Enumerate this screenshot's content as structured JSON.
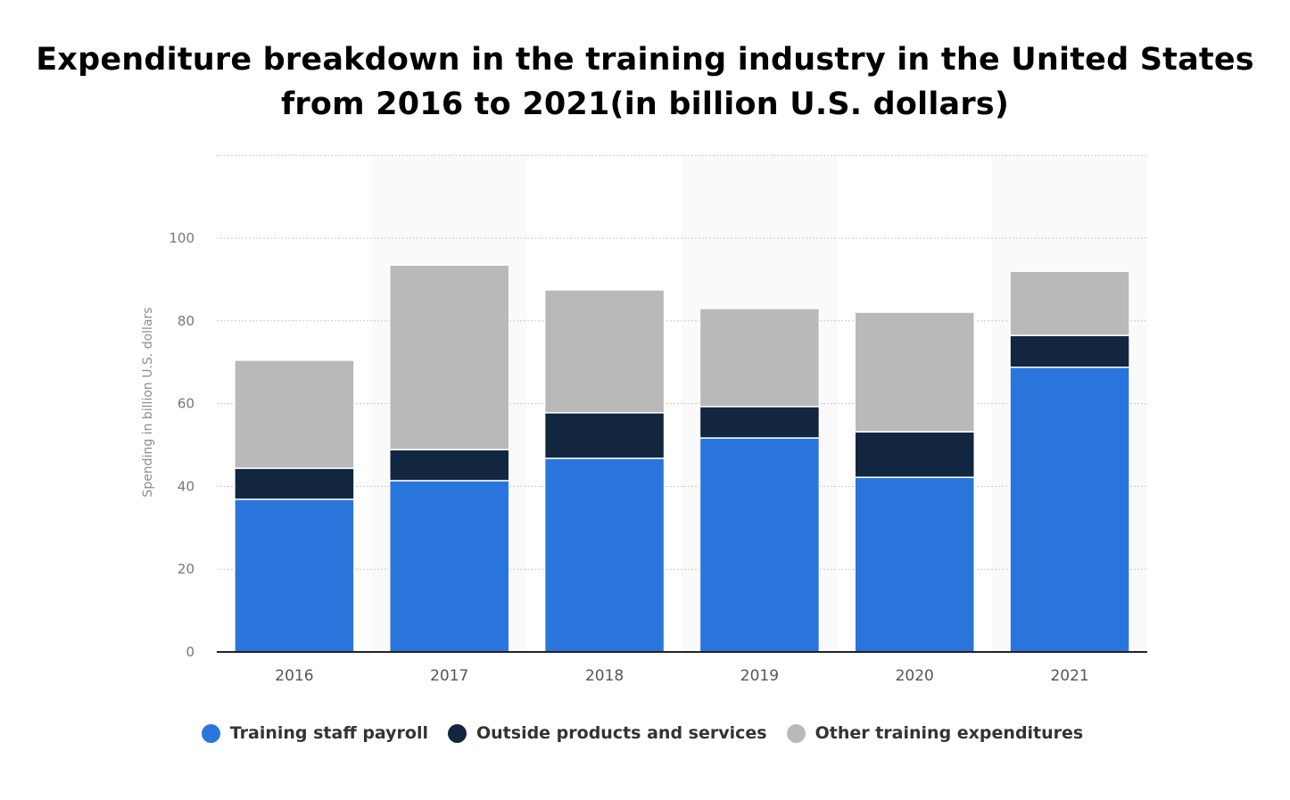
{
  "title": {
    "line1": "Expenditure breakdown in the training industry in the United States",
    "line2": "from 2016 to 2021(in billion U.S. dollars)"
  },
  "colors": {
    "payroll": "#2a75dc",
    "outside": "#12263f",
    "other": "#b9b9b9",
    "band": "#fafafa",
    "grid": "#c8c8c8",
    "axis": "#222222",
    "tick_text": "#777777"
  },
  "legend": [
    {
      "label": "Training staff payroll",
      "color": "#2a75dc"
    },
    {
      "label": "Outside products and services",
      "color": "#12263f"
    },
    {
      "label": "Other training expenditures",
      "color": "#b9b9b9"
    }
  ],
  "chart_data": {
    "type": "bar",
    "stacked": true,
    "title": "Expenditure breakdown in the training industry in the United States from 2016 to 2021(in billion U.S. dollars)",
    "xlabel": "",
    "ylabel": "Spending in billion U.S. dollars",
    "categories": [
      "2016",
      "2017",
      "2018",
      "2019",
      "2020",
      "2021"
    ],
    "series": [
      {
        "name": "Training staff payroll",
        "values": [
          36.9,
          41.4,
          46.8,
          51.7,
          42.2,
          68.8
        ]
      },
      {
        "name": "Outside products and services",
        "values": [
          7.5,
          7.5,
          11.0,
          7.6,
          11.0,
          7.7
        ]
      },
      {
        "name": "Other training expenditures",
        "values": [
          26.1,
          44.6,
          29.7,
          23.7,
          28.9,
          15.5
        ]
      }
    ],
    "ylim": [
      0,
      120
    ],
    "yticks": [
      0,
      20,
      40,
      60,
      80,
      100
    ],
    "grid": true,
    "legend_position": "bottom"
  }
}
